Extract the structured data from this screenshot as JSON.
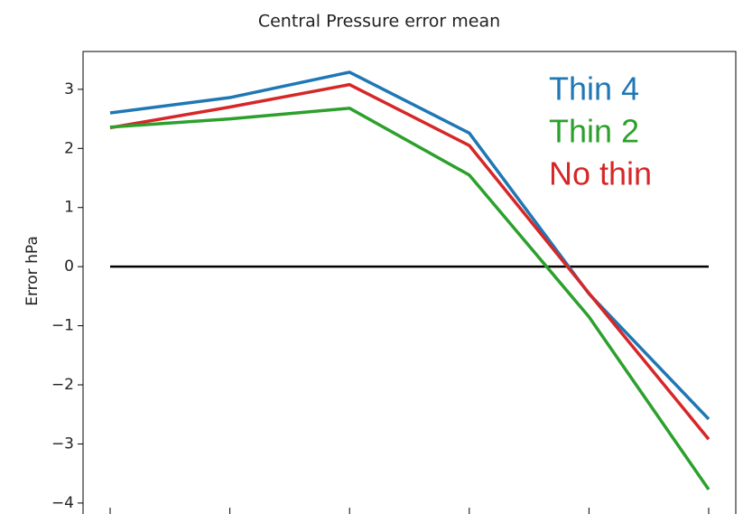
{
  "chart_data": {
    "type": "line",
    "title": "Central Pressure error mean",
    "y_label": "Error hPa",
    "categories": [
      null,
      null,
      null,
      null,
      null,
      null
    ],
    "series": [
      {
        "name": "Thin 4",
        "color": "#1f77b4",
        "values": [
          2.6,
          2.86,
          3.29,
          2.26,
          -0.46,
          -2.58
        ]
      },
      {
        "name": "Thin 2",
        "color": "#2ca02c",
        "values": [
          2.36,
          2.5,
          2.68,
          1.55,
          -0.85,
          -3.77
        ]
      },
      {
        "name": "No thin",
        "color": "#d62728",
        "values": [
          2.35,
          2.7,
          3.08,
          2.05,
          -0.45,
          -2.92
        ]
      }
    ],
    "reference_line": {
      "value": 0,
      "color": "#000000"
    },
    "ylim": [
      -4.17,
      3.64
    ],
    "yticks": [
      {
        "value": -4,
        "label": "−4"
      },
      {
        "value": -3,
        "label": "−3"
      },
      {
        "value": -2,
        "label": "−2"
      },
      {
        "value": -1,
        "label": "−1"
      },
      0,
      1,
      2,
      3
    ]
  }
}
